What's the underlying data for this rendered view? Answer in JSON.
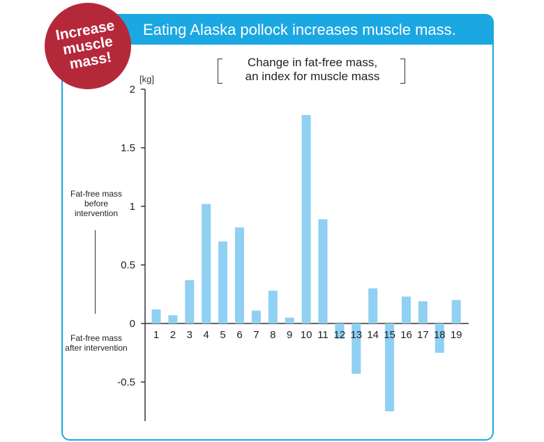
{
  "banner": {
    "title": "Eating Alaska pollock increases muscle mass."
  },
  "badge": {
    "line1": "Increase",
    "line2": "muscle",
    "line3": "mass!"
  },
  "colors": {
    "accent": "#1ba7e1",
    "bar": "#8fd0f3",
    "badge": "#b5283a"
  },
  "annotations": {
    "top": "Fat-free mass before intervention",
    "bottom": "Fat-free mass after intervention"
  },
  "chart_data": {
    "type": "bar",
    "title": "Change in fat-free mass, an index for muscle mass",
    "subtitle_line1": "Change in fat-free mass,",
    "subtitle_line2": "an index for muscle mass",
    "unit": "[kg]",
    "xlabel": "",
    "ylabel": "",
    "ylim": [
      -0.8,
      2
    ],
    "yticks": [
      2,
      1.5,
      1,
      0.5,
      0,
      -0.5
    ],
    "ytick_labels": [
      "2",
      "1.5",
      "1",
      "0.5",
      "0",
      "-0.5"
    ],
    "categories": [
      "1",
      "2",
      "3",
      "4",
      "5",
      "6",
      "7",
      "8",
      "9",
      "10",
      "11",
      "12",
      "13",
      "14",
      "15",
      "16",
      "17",
      "18",
      "19"
    ],
    "values": [
      0.12,
      0.07,
      0.37,
      1.02,
      0.7,
      0.82,
      0.11,
      0.28,
      0.05,
      1.78,
      0.89,
      -0.13,
      -0.43,
      0.3,
      -0.75,
      0.23,
      0.19,
      -0.25,
      0.2
    ],
    "grid": false,
    "legend": "none"
  }
}
